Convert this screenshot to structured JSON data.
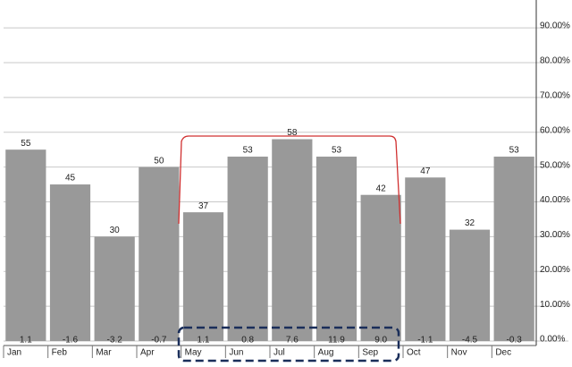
{
  "chart_data": {
    "type": "bar",
    "categories": [
      "Jan",
      "Feb",
      "Mar",
      "Apr",
      "May",
      "Jun",
      "Jul",
      "Aug",
      "Sep",
      "Oct",
      "Nov",
      "Dec"
    ],
    "values": [
      55,
      45,
      30,
      50,
      37,
      53,
      58,
      53,
      42,
      47,
      32,
      53
    ],
    "color": "#999999",
    "bottom_values": [
      1.1,
      -1.6,
      -3.2,
      -0.7,
      1.1,
      0.8,
      7.6,
      11.9,
      9.0,
      -1.1,
      -4.5,
      -0.3
    ],
    "bottom_value_labels": [
      "1.1",
      "-1.6",
      "-3.2",
      "-0.7",
      "1.1",
      "0.8",
      "7.6",
      "11.9",
      "9.0",
      "-1.1",
      "-4.5",
      "-0.3"
    ],
    "ylim": [
      0,
      98
    ],
    "yticks": [
      {
        "value": 0,
        "label": "0.00%"
      },
      {
        "value": 10,
        "label": "10.00%"
      },
      {
        "value": 20,
        "label": "20.00%"
      },
      {
        "value": 30,
        "label": "30.00%"
      },
      {
        "value": 40,
        "label": "40.00%"
      },
      {
        "value": 50,
        "label": "50.00%"
      },
      {
        "value": 60,
        "label": "60.00%"
      },
      {
        "value": 70,
        "label": "70.00%"
      },
      {
        "value": 80,
        "label": "80.00%"
      },
      {
        "value": 90,
        "label": "90.00%"
      }
    ],
    "grid": true
  }
}
